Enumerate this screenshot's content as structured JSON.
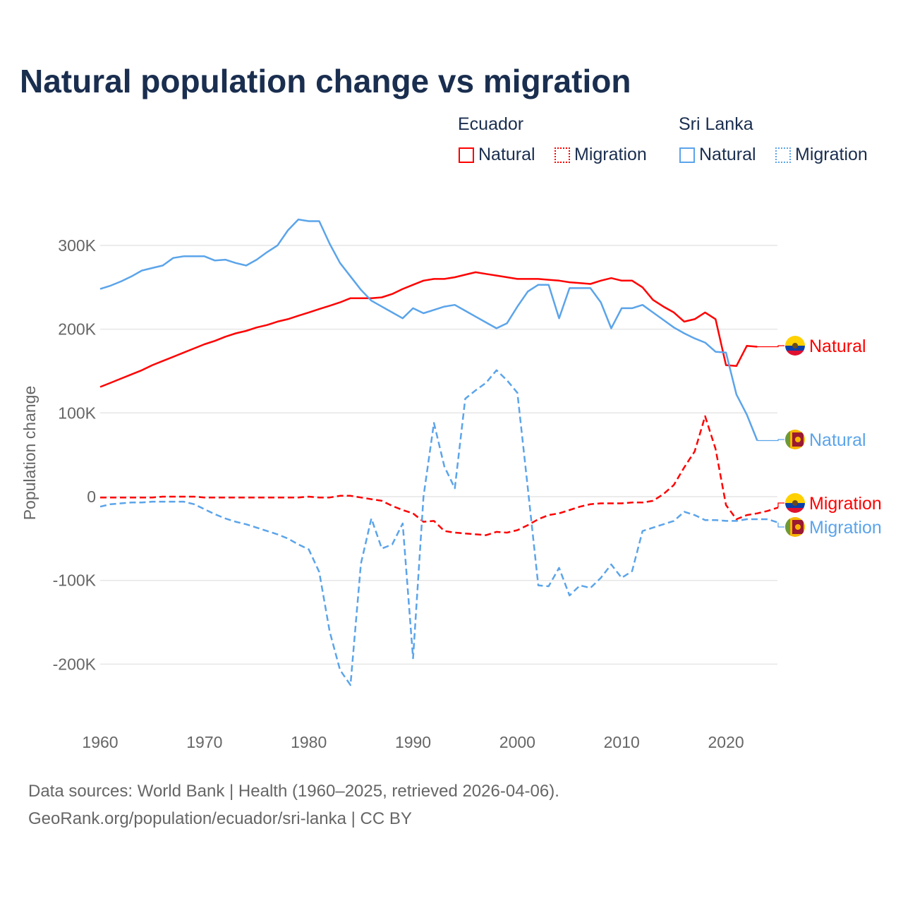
{
  "chart_data": {
    "type": "line",
    "title": "Natural population change vs migration",
    "xlabel": "",
    "ylabel": "Population change",
    "xlim": [
      1960,
      2025
    ],
    "ylim": [
      -250000,
      350000
    ],
    "x_ticks": [
      "1960",
      "1970",
      "1980",
      "1990",
      "2000",
      "2010",
      "2020"
    ],
    "y_ticks": [
      {
        "v": 300000,
        "label": "300K"
      },
      {
        "v": 200000,
        "label": "200K"
      },
      {
        "v": 100000,
        "label": "100K"
      },
      {
        "v": 0,
        "label": "0"
      },
      {
        "v": -100000,
        "label": "-100K"
      },
      {
        "v": -200000,
        "label": "-200K"
      }
    ],
    "grid": true,
    "legend": {
      "groups": [
        {
          "country": "Ecuador",
          "items": [
            "Natural",
            "Migration"
          ]
        },
        {
          "country": "Sri Lanka",
          "items": [
            "Natural",
            "Migration"
          ]
        }
      ],
      "placement": "top-right"
    },
    "series": [
      {
        "name": "Ecuador Natural",
        "label": "Natural",
        "color": "#ff0000",
        "dash": false,
        "flag": "ecuador",
        "start": 1960,
        "values_k": [
          131,
          136,
          141,
          146,
          151,
          157,
          162,
          167,
          172,
          177,
          182,
          186,
          191,
          195,
          198,
          202,
          205,
          209,
          212,
          216,
          220,
          224,
          228,
          232,
          237,
          237,
          237,
          238,
          242,
          248,
          253,
          258,
          260,
          260,
          262,
          265,
          268,
          266,
          264,
          262,
          260,
          260,
          260,
          259,
          258,
          256,
          255,
          254,
          258,
          261,
          258,
          258,
          250,
          235,
          227,
          220,
          209,
          212,
          220,
          212,
          157,
          156,
          180,
          179
        ]
      },
      {
        "name": "Sri Lanka Natural",
        "label": "Natural",
        "color": "#5ba4ea",
        "dash": false,
        "flag": "sri-lanka",
        "start": 1960,
        "values_k": [
          248,
          252,
          257,
          263,
          270,
          273,
          276,
          285,
          287,
          287,
          287,
          282,
          283,
          279,
          276,
          283,
          292,
          300,
          318,
          331,
          329,
          329,
          302,
          279,
          263,
          247,
          234,
          227,
          220,
          213,
          225,
          219,
          223,
          227,
          229,
          222,
          215,
          208,
          201,
          207,
          227,
          245,
          253,
          253,
          213,
          249,
          249,
          249,
          232,
          201,
          225,
          225,
          229,
          220,
          211,
          202,
          195,
          189,
          184,
          173,
          172,
          122,
          98,
          67
        ]
      },
      {
        "name": "Ecuador Migration",
        "label": "Migration",
        "color": "#ff0000",
        "dash": true,
        "flag": "ecuador",
        "start": 1960,
        "values_k": [
          -1,
          -1,
          -1,
          -1,
          -1,
          -1,
          0,
          0,
          0,
          0,
          -1,
          -1,
          -1,
          -1,
          -1,
          -1,
          -1,
          -1,
          -1,
          -1,
          0,
          -1,
          -1,
          1,
          1,
          -1,
          -3,
          -5,
          -11,
          -16,
          -20,
          -30,
          -29,
          -41,
          -43,
          -44,
          -45,
          -46,
          -42,
          -43,
          -40,
          -34,
          -27,
          -22,
          -20,
          -16,
          -12,
          -9,
          -8,
          -8,
          -8,
          -7,
          -7,
          -5,
          3,
          14,
          35,
          54,
          96,
          57,
          -10,
          -27,
          -22,
          -20,
          -17,
          -13
        ]
      },
      {
        "name": "Sri Lanka Migration",
        "label": "Migration",
        "color": "#5ba4ea",
        "dash": true,
        "flag": "sri-lanka",
        "start": 1960,
        "values_k": [
          -12,
          -9,
          -8,
          -7,
          -7,
          -6,
          -6,
          -6,
          -6,
          -9,
          -15,
          -21,
          -26,
          -30,
          -33,
          -37,
          -41,
          -45,
          -50,
          -57,
          -63,
          -90,
          -161,
          -207,
          -225,
          -80,
          -26,
          -62,
          -57,
          -32,
          -193,
          0,
          88,
          36,
          10,
          117,
          127,
          136,
          151,
          139,
          124,
          10,
          -106,
          -107,
          -85,
          -118,
          -106,
          -109,
          -97,
          -81,
          -97,
          -89,
          -41,
          -37,
          -33,
          -29,
          -18,
          -22,
          -28,
          -28,
          -29,
          -29,
          -27,
          -27,
          -27,
          -31
        ]
      }
    ]
  },
  "footer": {
    "line1": "Data sources: World Bank | Health (1960–2025, retrieved 2026-04-06).",
    "line2": "GeoRank.org/population/ecuador/sri-lanka | CC BY"
  }
}
